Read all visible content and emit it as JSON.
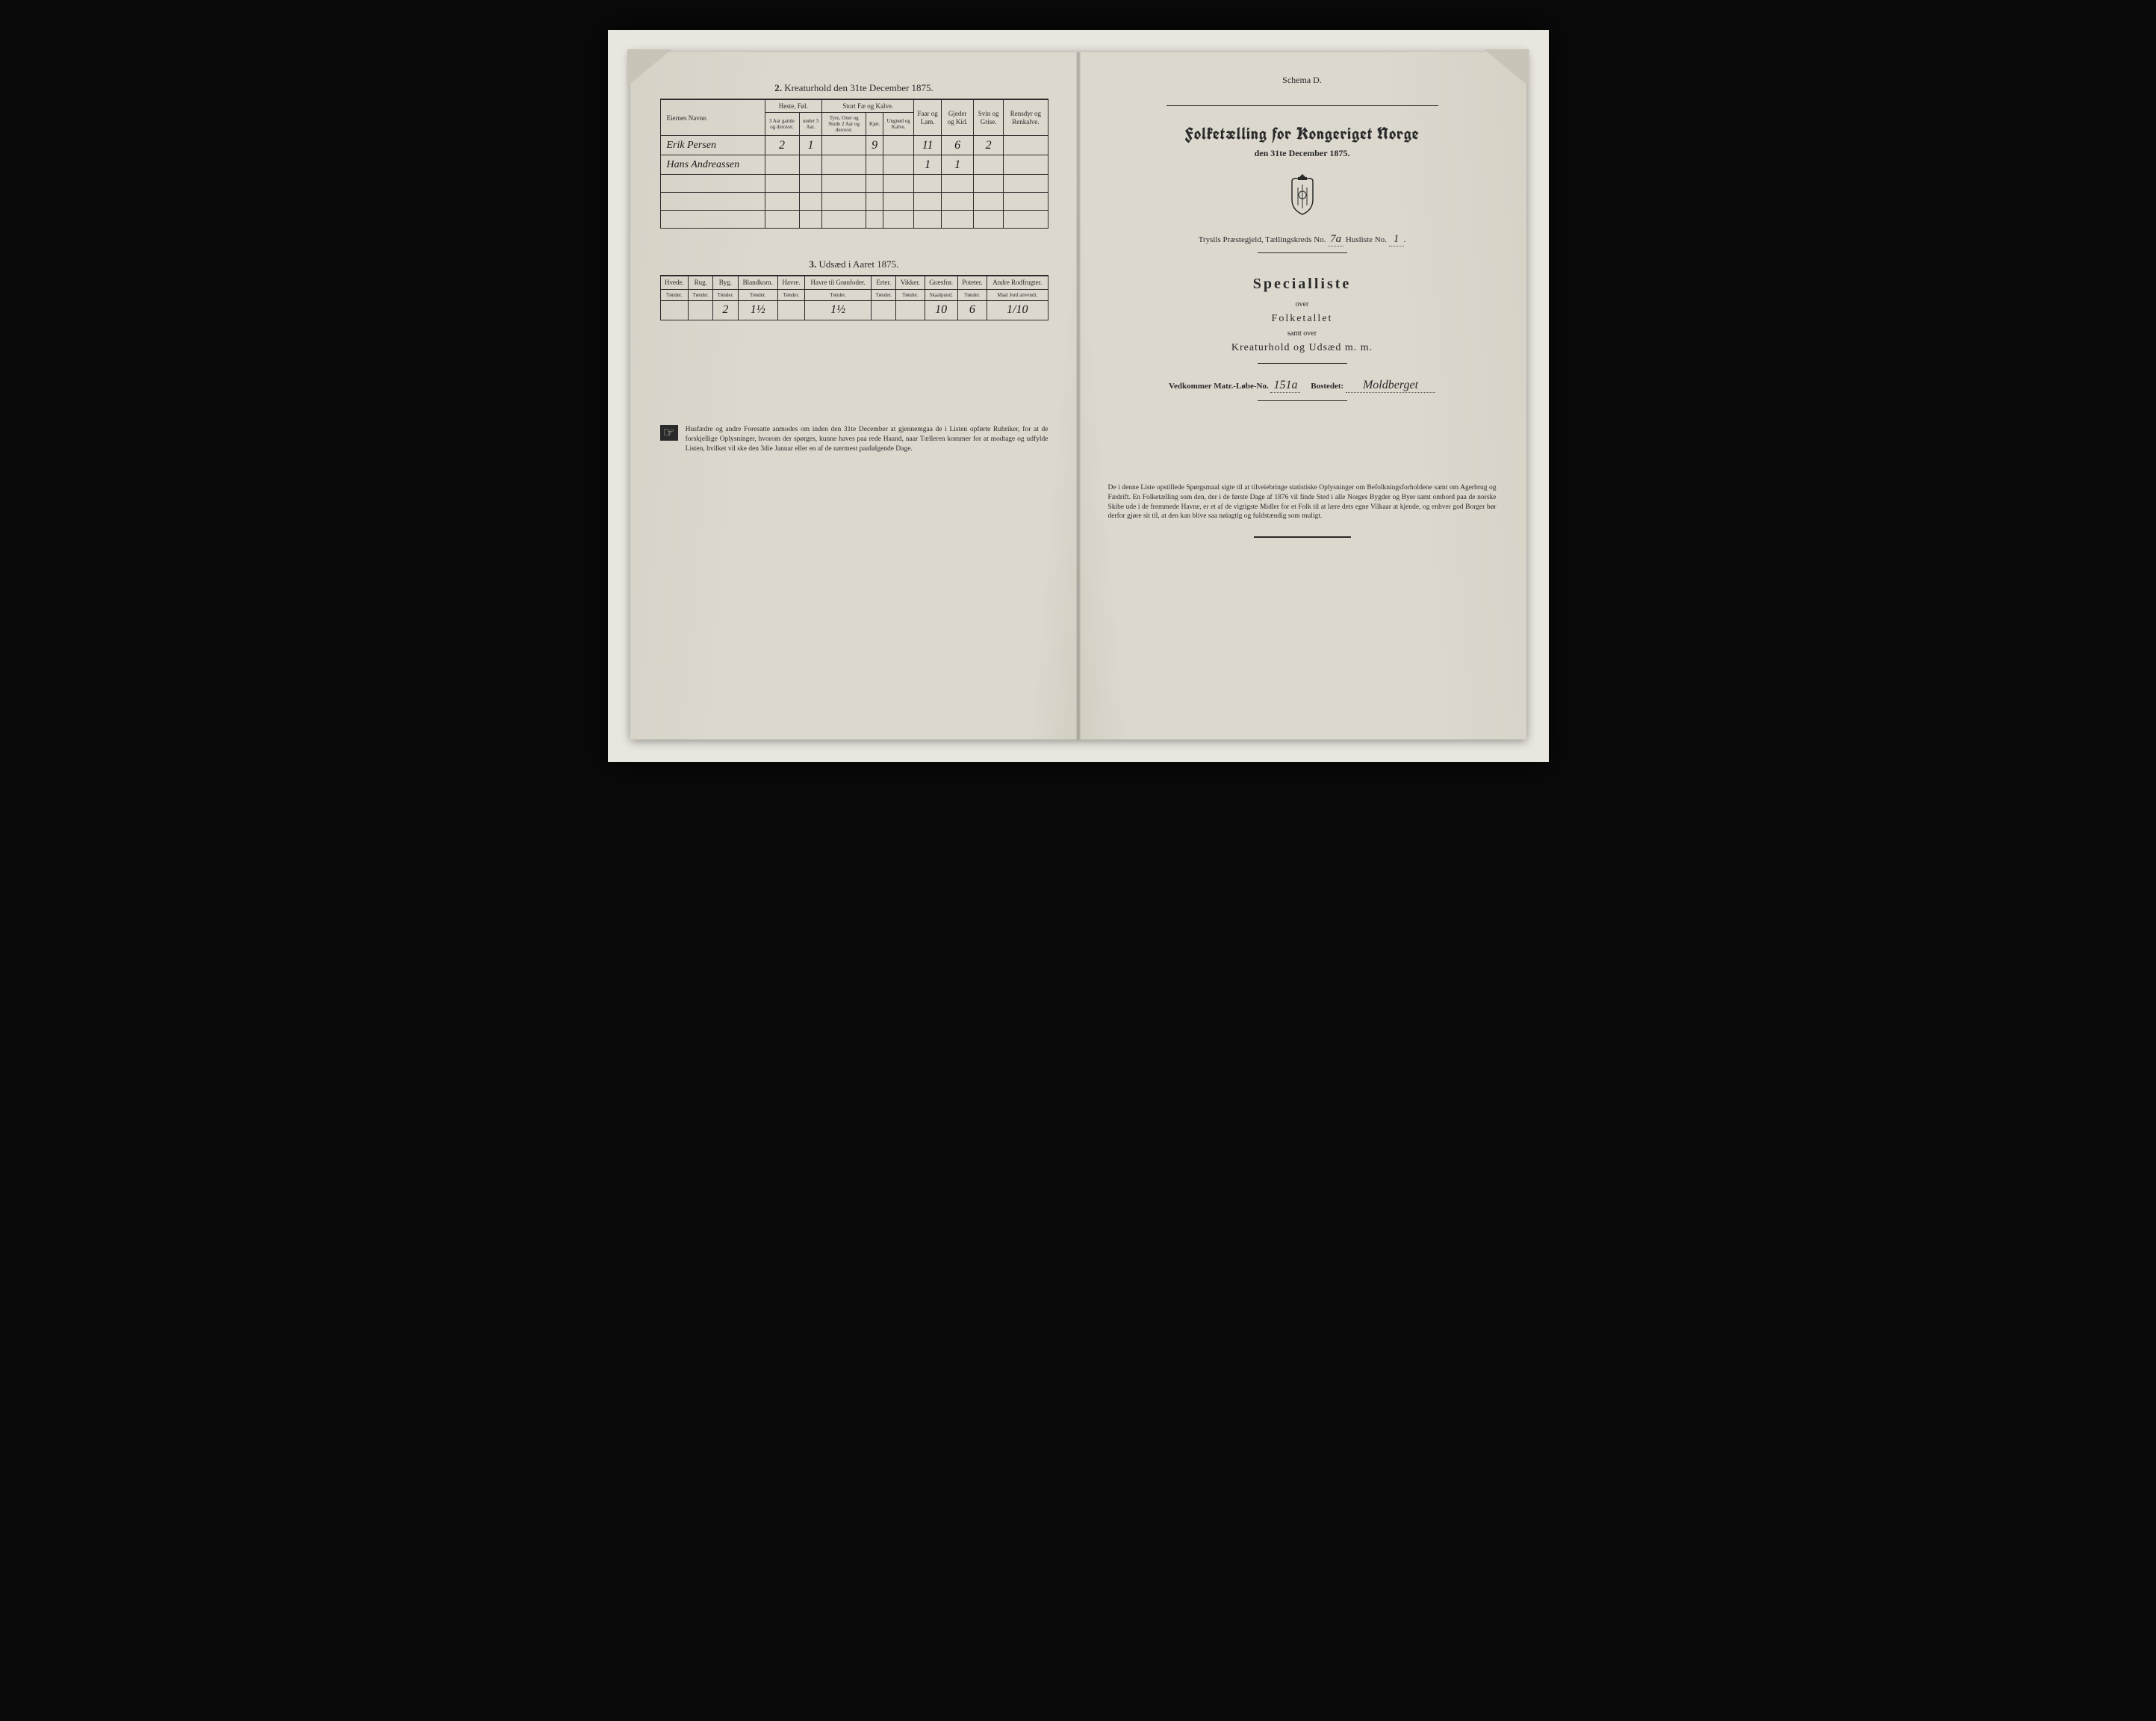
{
  "meta": {
    "background": "#0a0a0a",
    "paper": "#dcd8ce",
    "ink": "#2a2a2a"
  },
  "left": {
    "section2": {
      "title_num": "2.",
      "title": "Kreaturhold den 31te December 1875.",
      "col_owner": "Eiernes Navne.",
      "group_heste": "Heste, Føl.",
      "group_stort": "Stort Fæ og Kalve.",
      "col_heste_a": "3 Aar gamle og derover.",
      "col_heste_b": "under 3 Aar.",
      "col_stort_a": "Tyre, Oxer og Stude 2 Aar og derover.",
      "col_stort_b": "Kjør.",
      "col_stort_c": "Ungnød og Kalve.",
      "col_faar": "Faar og Lam.",
      "col_gjeder": "Gjeder og Kid.",
      "col_svin": "Svin og Grise.",
      "col_rensdyr": "Rensdyr og Renkalve.",
      "rows": [
        {
          "name": "Erik Persen",
          "v": [
            "2",
            "1",
            "",
            "9",
            "",
            "11",
            "6",
            "2",
            ""
          ]
        },
        {
          "name": "Hans Andreassen",
          "v": [
            "",
            "",
            "",
            "",
            "",
            "1",
            "1",
            "",
            ""
          ]
        }
      ]
    },
    "section3": {
      "title_num": "3.",
      "title": "Udsæd i Aaret 1875.",
      "cols": [
        "Hvede.",
        "Rug.",
        "Byg.",
        "Blandkorn.",
        "Havre.",
        "Havre til Grønfoder.",
        "Erter.",
        "Vikker.",
        "Græsfrø.",
        "Poteter.",
        "Andre Rodfrugter."
      ],
      "units": [
        "Tønder.",
        "Tønder.",
        "Tønder.",
        "Tønder.",
        "Tønder.",
        "Tønder.",
        "Tønder.",
        "Tønder.",
        "Skaalpund.",
        "Tønder.",
        "Maal Jord anvendt."
      ],
      "row": [
        "",
        "",
        "2",
        "1½",
        "",
        "1½",
        "",
        "",
        "10",
        "6",
        "1/10"
      ]
    },
    "footnote": "Husfædre og andre Foresatte anmodes om inden den 31te December at gjennemgaa de i Listen opførte Rubriker, for at de forskjellige Oplysninger, hvorom der spørges, kunne haves paa rede Haand, naar Tælleren kommer for at modtage og udfylde Listen, hvilket vil ske den 3die Januar eller en af de nærmest paafølgende Dage."
  },
  "right": {
    "schema": "Schema D.",
    "main_title": "Folketælling for Kongeriget Norge",
    "sub_date": "den 31te December 1875.",
    "parish_prefix": "Trysils Præstegjeld, Tællingskreds No.",
    "parish_kreds": "7a",
    "parish_mid": "Husliste No.",
    "parish_liste": "1",
    "special": "Specialliste",
    "over": "over",
    "folketallet": "Folketallet",
    "samt_over": "samt over",
    "kreatur": "Kreaturhold og Udsæd m. m.",
    "matr_label": "Vedkommer Matr.-Løbe-No.",
    "matr_no": "151a",
    "bosted_label": "Bostedet:",
    "bosted": "Moldberget",
    "footnote": "De i denne Liste opstillede Spørgsmaal sigte til at tilveiebringe statistiske Oplysninger om Befolkningsforholdene samt om Agerbrug og Fædrift. En Folketælling som den, der i de første Dage af 1876 vil finde Sted i alle Norges Bygder og Byer samt ombord paa de norske Skibe ude i de fremmede Havne, er et af de vigtigste Midler for et Folk til at lære dets egne Vilkaar at kjende, og enhver god Borger bør derfor gjøre sit til, at den kan blive saa nøiagtig og fuldstændig som muligt."
  }
}
